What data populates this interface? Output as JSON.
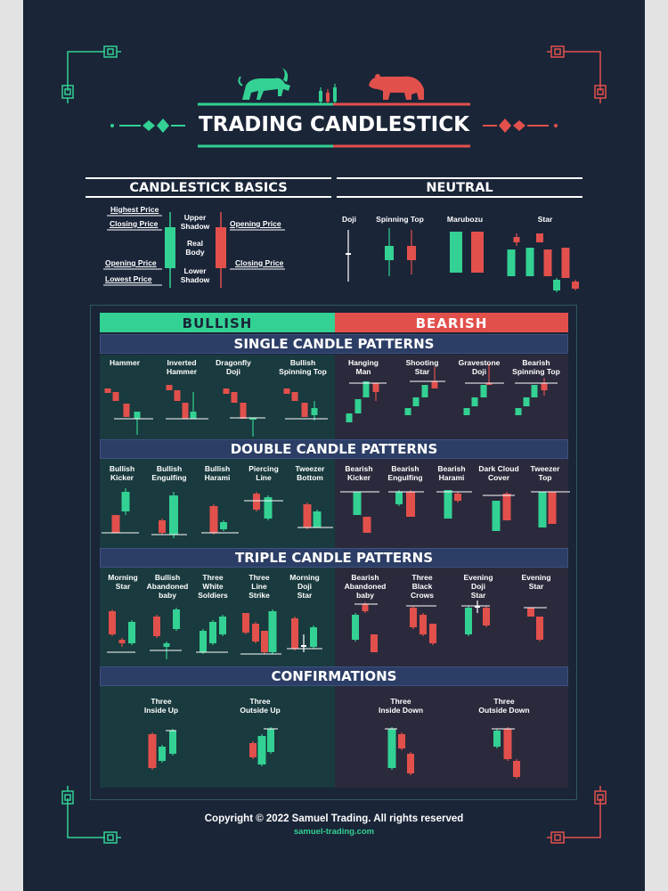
{
  "title": "TRADING CANDLESTICK",
  "basics": {
    "heading": "CANDLESTICK BASICS",
    "labels": {
      "highest_price": "Highest Price",
      "closing_price_left": "Closing Price",
      "opening_price_left": "Opening Price",
      "lowest_price": "Lowest Price",
      "upper_shadow": "Upper\nShadow",
      "real_body": "Real\nBody",
      "lower_shadow": "Lower\nShadow",
      "opening_price_right": "Opening Price",
      "closing_price_right": "Closing Price"
    }
  },
  "neutral": {
    "heading": "NEUTRAL",
    "items": [
      "Doji",
      "Spinning Top",
      "Marubozu",
      "Star"
    ]
  },
  "bullish_label": "BULLISH",
  "bearish_label": "BEARISH",
  "single": {
    "heading": "SINGLE CANDLE PATTERNS",
    "bullish": [
      "Hammer",
      "Inverted\nHammer",
      "Dragonfly\nDoji",
      "Bullish\nSpinning Top"
    ],
    "bearish": [
      "Hanging\nMan",
      "Shooting\nStar",
      "Gravestone\nDoji",
      "Bearish\nSpinning Top"
    ]
  },
  "double": {
    "heading": "DOUBLE CANDLE PATTERNS",
    "bullish": [
      "Bullish\nKicker",
      "Bullish\nEngulfing",
      "Bullish\nHarami",
      "Piercing\nLine",
      "Tweezer\nBottom"
    ],
    "bearish": [
      "Bearish\nKicker",
      "Bearish\nEngulfing",
      "Bearish\nHarami",
      "Dark Cloud\nCover",
      "Tweezer\nTop"
    ]
  },
  "triple": {
    "heading": "TRIPLE CANDLE PATTERNS",
    "bullish": [
      "Morning\nStar",
      "Bullish\nAbandoned\nbaby",
      "Three\nWhite\nSoldiers",
      "Three\nLine\nStrike",
      "Morning\nDoji\nStar"
    ],
    "bearish": [
      "Bearish\nAbandoned\nbaby",
      "Three\nBlack\nCrows",
      "Evening\nDoji\nStar",
      "Evening\nStar"
    ]
  },
  "confirmations": {
    "heading": "CONFIRMATIONS",
    "bullish": [
      "Three\nInside Up",
      "Three\nOutside Up"
    ],
    "bearish": [
      "Three\nInside Down",
      "Three\nOutside Down"
    ]
  },
  "footer": {
    "copyright": "Copyright © 2022 Samuel Trading. All rights reserved",
    "website": "samuel-trading.com"
  },
  "colors": {
    "background": "#1a2538",
    "bull": "#33d193",
    "bear": "#e2504c",
    "header_bar": "#2c3e66",
    "bull_panel": "#193a3e",
    "bear_panel": "#2b2a3c"
  },
  "icons": [
    "bull-icon",
    "bear-icon",
    "corner-ornament-icon",
    "divider-ornament-icon"
  ]
}
